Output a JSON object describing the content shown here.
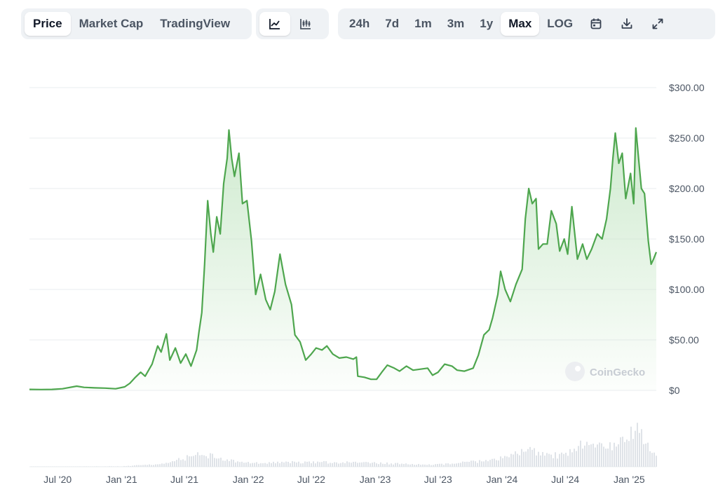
{
  "toolbar": {
    "view_tabs": [
      {
        "label": "Price",
        "active": true
      },
      {
        "label": "Market Cap",
        "active": false
      },
      {
        "label": "TradingView",
        "active": false
      }
    ],
    "chart_type_buttons": [
      {
        "icon": "line-chart-icon",
        "active": true
      },
      {
        "icon": "candlestick-chart-icon",
        "active": false
      }
    ],
    "range_tabs": [
      {
        "label": "24h",
        "active": false
      },
      {
        "label": "7d",
        "active": false
      },
      {
        "label": "1m",
        "active": false
      },
      {
        "label": "3m",
        "active": false
      },
      {
        "label": "1y",
        "active": false
      },
      {
        "label": "Max",
        "active": true
      },
      {
        "label": "LOG",
        "active": false
      }
    ],
    "action_icons": [
      "calendar-icon",
      "download-icon",
      "expand-icon"
    ]
  },
  "watermark": "CoinGecko",
  "colors": {
    "line": "#4ea64e",
    "area_top": "#c9e8c9",
    "grid": "#e9ecef",
    "volume": "#dfe3e8"
  },
  "chart_data": {
    "type": "area",
    "title": "",
    "xlabel": "",
    "ylabel": "",
    "ylim": [
      0,
      300
    ],
    "y_ticks": [
      0,
      50,
      100,
      150,
      200,
      250,
      300
    ],
    "y_tick_labels": [
      "$0",
      "$50.00",
      "$100.00",
      "$150.00",
      "$200.00",
      "$250.00",
      "$300.00"
    ],
    "x_ticks": [
      "2020-07-01",
      "2021-01-01",
      "2021-07-01",
      "2022-01-01",
      "2022-07-01",
      "2023-01-01",
      "2023-07-01",
      "2024-01-01",
      "2024-07-01",
      "2025-01-01"
    ],
    "x_tick_labels": [
      "Jul '20",
      "Jan '21",
      "Jul '21",
      "Jan '22",
      "Jul '22",
      "Jan '23",
      "Jul '23",
      "Jan '24",
      "Jul '24",
      "Jan '25"
    ],
    "series": [
      {
        "points": [
          [
            "2020-04-11",
            1.0
          ],
          [
            "2020-05-15",
            0.8
          ],
          [
            "2020-06-15",
            1.0
          ],
          [
            "2020-07-15",
            1.6
          ],
          [
            "2020-08-25",
            4.2
          ],
          [
            "2020-09-15",
            3.0
          ],
          [
            "2020-10-15",
            2.5
          ],
          [
            "2020-11-15",
            2.2
          ],
          [
            "2020-12-15",
            1.6
          ],
          [
            "2021-01-10",
            3.5
          ],
          [
            "2021-01-25",
            7.0
          ],
          [
            "2021-02-10",
            13
          ],
          [
            "2021-02-25",
            18
          ],
          [
            "2021-03-10",
            14
          ],
          [
            "2021-03-30",
            26
          ],
          [
            "2021-04-15",
            44
          ],
          [
            "2021-04-25",
            38
          ],
          [
            "2021-05-10",
            56
          ],
          [
            "2021-05-20",
            30
          ],
          [
            "2021-06-05",
            42
          ],
          [
            "2021-06-20",
            27
          ],
          [
            "2021-07-05",
            36
          ],
          [
            "2021-07-20",
            24
          ],
          [
            "2021-08-05",
            40
          ],
          [
            "2021-08-12",
            58
          ],
          [
            "2021-08-20",
            77
          ],
          [
            "2021-08-28",
            125
          ],
          [
            "2021-09-06",
            188
          ],
          [
            "2021-09-15",
            155
          ],
          [
            "2021-09-22",
            137
          ],
          [
            "2021-10-02",
            172
          ],
          [
            "2021-10-12",
            155
          ],
          [
            "2021-10-22",
            205
          ],
          [
            "2021-11-01",
            230
          ],
          [
            "2021-11-06",
            258
          ],
          [
            "2021-11-14",
            230
          ],
          [
            "2021-11-22",
            212
          ],
          [
            "2021-12-05",
            235
          ],
          [
            "2021-12-15",
            185
          ],
          [
            "2021-12-28",
            188
          ],
          [
            "2022-01-10",
            148
          ],
          [
            "2022-01-22",
            95
          ],
          [
            "2022-02-05",
            115
          ],
          [
            "2022-02-20",
            90
          ],
          [
            "2022-03-05",
            80
          ],
          [
            "2022-03-18",
            98
          ],
          [
            "2022-04-02",
            135
          ],
          [
            "2022-04-18",
            105
          ],
          [
            "2022-05-05",
            85
          ],
          [
            "2022-05-15",
            55
          ],
          [
            "2022-05-30",
            48
          ],
          [
            "2022-06-15",
            30
          ],
          [
            "2022-07-01",
            36
          ],
          [
            "2022-07-15",
            42
          ],
          [
            "2022-08-01",
            40
          ],
          [
            "2022-08-15",
            44
          ],
          [
            "2022-09-01",
            36
          ],
          [
            "2022-09-20",
            32
          ],
          [
            "2022-10-10",
            33
          ],
          [
            "2022-10-30",
            31
          ],
          [
            "2022-11-08",
            33
          ],
          [
            "2022-11-12",
            14
          ],
          [
            "2022-12-01",
            13
          ],
          [
            "2022-12-20",
            11
          ],
          [
            "2023-01-05",
            11
          ],
          [
            "2023-01-20",
            18
          ],
          [
            "2023-02-05",
            25
          ],
          [
            "2023-02-25",
            22
          ],
          [
            "2023-03-12",
            19
          ],
          [
            "2023-04-01",
            24
          ],
          [
            "2023-04-20",
            20
          ],
          [
            "2023-05-10",
            21
          ],
          [
            "2023-06-01",
            22
          ],
          [
            "2023-06-15",
            15
          ],
          [
            "2023-07-01",
            18
          ],
          [
            "2023-07-20",
            26
          ],
          [
            "2023-08-10",
            24
          ],
          [
            "2023-08-25",
            20
          ],
          [
            "2023-09-15",
            19
          ],
          [
            "2023-10-10",
            22
          ],
          [
            "2023-10-25",
            35
          ],
          [
            "2023-11-10",
            55
          ],
          [
            "2023-11-25",
            60
          ],
          [
            "2023-12-05",
            72
          ],
          [
            "2023-12-20",
            95
          ],
          [
            "2023-12-28",
            118
          ],
          [
            "2024-01-10",
            100
          ],
          [
            "2024-01-25",
            88
          ],
          [
            "2024-02-10",
            105
          ],
          [
            "2024-02-28",
            120
          ],
          [
            "2024-03-08",
            170
          ],
          [
            "2024-03-18",
            200
          ],
          [
            "2024-03-28",
            185
          ],
          [
            "2024-04-08",
            190
          ],
          [
            "2024-04-15",
            140
          ],
          [
            "2024-04-28",
            145
          ],
          [
            "2024-05-10",
            145
          ],
          [
            "2024-05-22",
            178
          ],
          [
            "2024-06-05",
            165
          ],
          [
            "2024-06-15",
            138
          ],
          [
            "2024-06-28",
            150
          ],
          [
            "2024-07-08",
            135
          ],
          [
            "2024-07-20",
            182
          ],
          [
            "2024-08-05",
            130
          ],
          [
            "2024-08-20",
            145
          ],
          [
            "2024-09-01",
            130
          ],
          [
            "2024-09-15",
            140
          ],
          [
            "2024-10-01",
            155
          ],
          [
            "2024-10-15",
            150
          ],
          [
            "2024-10-28",
            170
          ],
          [
            "2024-11-08",
            200
          ],
          [
            "2024-11-15",
            230
          ],
          [
            "2024-11-22",
            255
          ],
          [
            "2024-12-02",
            225
          ],
          [
            "2024-12-12",
            235
          ],
          [
            "2024-12-22",
            190
          ],
          [
            "2025-01-05",
            215
          ],
          [
            "2025-01-14",
            185
          ],
          [
            "2025-01-20",
            260
          ],
          [
            "2025-01-28",
            230
          ],
          [
            "2025-02-05",
            200
          ],
          [
            "2025-02-14",
            195
          ],
          [
            "2025-02-25",
            148
          ],
          [
            "2025-03-05",
            125
          ],
          [
            "2025-03-12",
            130
          ],
          [
            "2025-03-20",
            137
          ]
        ]
      }
    ],
    "volume": {
      "description": "trading volume histogram below price",
      "points": [
        [
          "2020-07-01",
          0.5
        ],
        [
          "2021-01-01",
          1
        ],
        [
          "2021-05-01",
          6
        ],
        [
          "2021-08-20",
          28
        ],
        [
          "2021-11-01",
          14
        ],
        [
          "2022-01-20",
          8
        ],
        [
          "2022-05-10",
          10
        ],
        [
          "2022-11-10",
          9
        ],
        [
          "2023-06-15",
          4
        ],
        [
          "2023-11-01",
          12
        ],
        [
          "2024-01-01",
          18
        ],
        [
          "2024-03-15",
          35
        ],
        [
          "2024-06-15",
          22
        ],
        [
          "2024-08-05",
          45
        ],
        [
          "2024-11-15",
          40
        ],
        [
          "2025-01-20",
          75
        ],
        [
          "2025-03-20",
          25
        ]
      ]
    }
  }
}
